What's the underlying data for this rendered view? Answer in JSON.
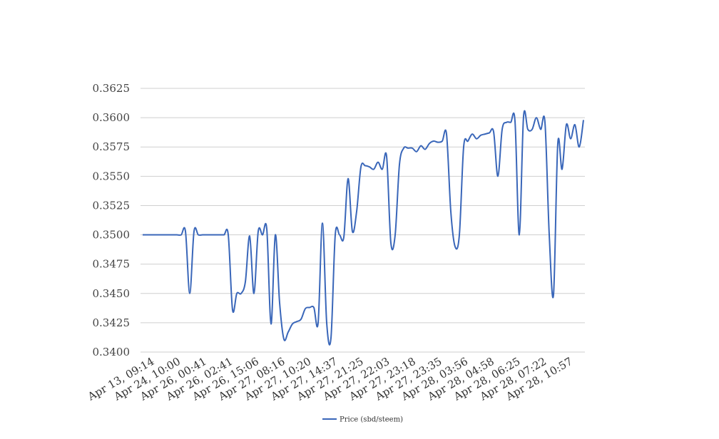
{
  "chart_data": {
    "type": "line",
    "title": "",
    "xlabel": "",
    "ylabel": "",
    "ylim": [
      0.34,
      0.3625
    ],
    "yticks": [
      "0.3400",
      "0.3425",
      "0.3450",
      "0.3475",
      "0.3500",
      "0.3525",
      "0.3550",
      "0.3575",
      "0.3600",
      "0.3625"
    ],
    "xtick_labels": [
      "Apr 13, 09:14",
      "Apr 24, 10:00",
      "Apr 26, 00:41",
      "Apr 26, 02:41",
      "Apr 26, 15:06",
      "Apr 27, 08:16",
      "Apr 27, 10:20",
      "Apr 27, 14:37",
      "Apr 27, 21:25",
      "Apr 27, 22:03",
      "Apr 27, 23:18",
      "Apr 27, 23:35",
      "Apr 28, 03:56",
      "Apr 28, 04:58",
      "Apr 28, 06:25",
      "Apr 28, 07:22",
      "Apr 28, 10:57"
    ],
    "grid": true,
    "legend_position": "bottom",
    "series": [
      {
        "name": "Price (sbd/steem)",
        "color": "#3966b9",
        "values": [
          0.35,
          0.35,
          0.35,
          0.35,
          0.35,
          0.35,
          0.35,
          0.35,
          0.35,
          0.35,
          0.3503,
          0.345,
          0.3503,
          0.35,
          0.35,
          0.35,
          0.35,
          0.35,
          0.35,
          0.35,
          0.35,
          0.3436,
          0.345,
          0.345,
          0.346,
          0.3499,
          0.345,
          0.3503,
          0.35,
          0.3505,
          0.3424,
          0.35,
          0.3442,
          0.3411,
          0.3417,
          0.3424,
          0.3426,
          0.3428,
          0.3437,
          0.3438,
          0.3438,
          0.3425,
          0.351,
          0.3425,
          0.3412,
          0.35,
          0.35,
          0.3498,
          0.3548,
          0.3503,
          0.352,
          0.3558,
          0.3559,
          0.3558,
          0.3556,
          0.3562,
          0.3556,
          0.3567,
          0.3493,
          0.35,
          0.356,
          0.3574,
          0.3574,
          0.3574,
          0.3571,
          0.3576,
          0.3573,
          0.3578,
          0.358,
          0.3579,
          0.358,
          0.3586,
          0.352,
          0.349,
          0.35,
          0.3575,
          0.358,
          0.3586,
          0.3582,
          0.3585,
          0.3586,
          0.3587,
          0.3588,
          0.355,
          0.359,
          0.3596,
          0.3596,
          0.3597,
          0.35,
          0.3601,
          0.359,
          0.359,
          0.36,
          0.359,
          0.3596,
          0.35,
          0.3449,
          0.3578,
          0.3556,
          0.3594,
          0.3582,
          0.3594,
          0.3575,
          0.3598
        ]
      }
    ]
  }
}
